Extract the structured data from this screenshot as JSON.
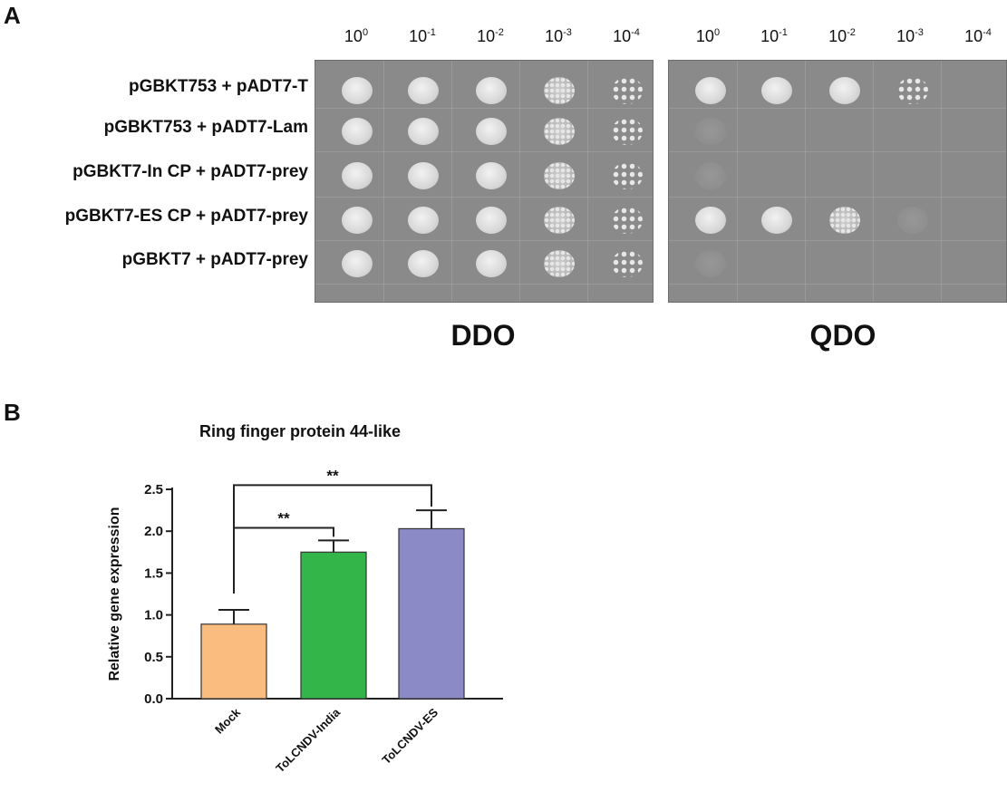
{
  "panel_a": {
    "letter": "A",
    "dilutions": [
      {
        "base": "10",
        "exp": "0"
      },
      {
        "base": "10",
        "exp": "-1"
      },
      {
        "base": "10",
        "exp": "-2"
      },
      {
        "base": "10",
        "exp": "-3"
      },
      {
        "base": "10",
        "exp": "-4"
      }
    ],
    "row_labels": [
      "pGBKT753 + pADT7-T",
      "pGBKT753 + pADT7-Lam",
      "pGBKT7-In CP + pADT7-prey",
      "pGBKT7-ES CP + pADT7-prey",
      "pGBKT7 + pADT7-prey"
    ],
    "plates": [
      {
        "label": "DDO",
        "growth": [
          [
            1,
            1,
            1,
            0.8,
            0.5
          ],
          [
            1,
            1,
            1,
            0.8,
            0.5
          ],
          [
            1,
            1,
            1,
            0.8,
            0.4
          ],
          [
            1,
            1,
            1,
            0.8,
            0.4
          ],
          [
            1,
            1,
            1,
            0.8,
            0.5
          ]
        ]
      },
      {
        "label": "QDO",
        "growth": [
          [
            1,
            1,
            0.9,
            0.3,
            0
          ],
          [
            0.1,
            0,
            0,
            0,
            0
          ],
          [
            0.1,
            0,
            0,
            0,
            0
          ],
          [
            1,
            1,
            0.7,
            0.1,
            0
          ],
          [
            0.1,
            0,
            0,
            0,
            0
          ]
        ]
      }
    ]
  },
  "panel_b": {
    "letter": "B",
    "chart_data": {
      "type": "bar",
      "title": "Ring finger protein 44-like",
      "ylabel": "Relative gene expression",
      "xlabel": "",
      "categories": [
        "Mock",
        "ToLCNDV-India",
        "ToLCNDV-ES"
      ],
      "values": [
        0.89,
        1.75,
        2.03
      ],
      "errors": [
        0.17,
        0.14,
        0.22
      ],
      "colors": [
        "#fbbc7f",
        "#33b54a",
        "#8b8ac6"
      ],
      "ylim": [
        0,
        2.5
      ],
      "yticks": [
        "0.0",
        "0.5",
        "1.0",
        "1.5",
        "2.0",
        "2.5"
      ],
      "significance": [
        {
          "from": 0,
          "to": 1,
          "label": "**"
        },
        {
          "from": 0,
          "to": 2,
          "label": "**"
        }
      ]
    }
  }
}
